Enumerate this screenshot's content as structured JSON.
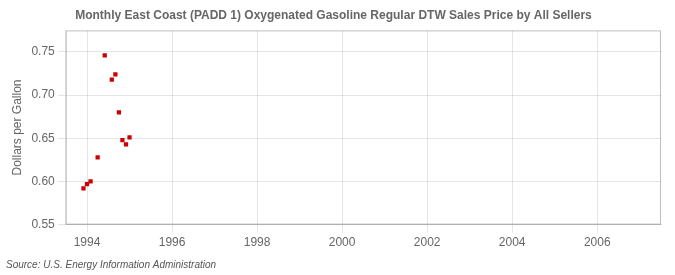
{
  "chart_data": {
    "type": "scatter",
    "title": "Monthly East Coast (PADD 1) Oxygenated Gasoline Regular DTW Sales Price by All Sellers",
    "ylabel": "Dollars per Gallon",
    "annotations": [
      "Source: U.S. Energy Information Administration"
    ],
    "x": [
      1993.917,
      1994.0,
      1994.083,
      1994.25,
      1994.417,
      1994.583,
      1994.667,
      1994.75,
      1994.833,
      1994.917,
      1995.0
    ],
    "values": [
      0.592,
      0.597,
      0.6,
      0.628,
      0.746,
      0.718,
      0.724,
      0.68,
      0.648,
      0.643,
      0.651
    ],
    "color": "#cc0000",
    "marker": "square",
    "xlim": [
      1993.5,
      2007.5
    ],
    "ylim": [
      0.55,
      0.775
    ],
    "xticks": [
      1994,
      1996,
      1998,
      2000,
      2002,
      2004,
      2006
    ],
    "yticks": [
      0.55,
      {
        "value": 0.6,
        "label": "0.60"
      },
      0.65,
      {
        "value": 0.7,
        "label": "0.70"
      },
      0.75
    ],
    "grid": true
  }
}
